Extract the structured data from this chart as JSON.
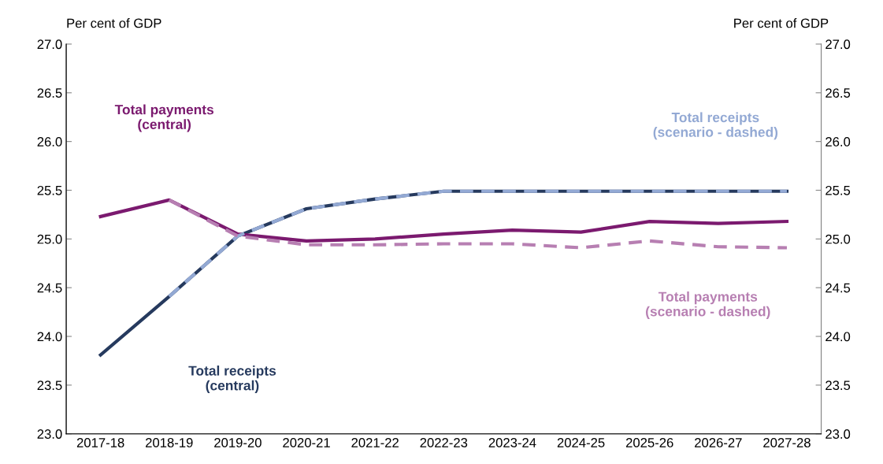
{
  "chart_data": {
    "type": "line",
    "ylabel": "Per cent of GDP",
    "y2label": "Per cent of GDP",
    "categories": [
      "2017-18",
      "2018-19",
      "2019-20",
      "2020-21",
      "2021-22",
      "2022-23",
      "2023-24",
      "2024-25",
      "2025-26",
      "2026-27",
      "2027-28"
    ],
    "ylim": [
      23.0,
      27.0
    ],
    "yticks": [
      {
        "value": 23.0,
        "label": "23.0"
      },
      {
        "value": 23.5,
        "label": "23.5"
      },
      {
        "value": 24.0,
        "label": "24.0"
      },
      {
        "value": 24.5,
        "label": "24.5"
      },
      {
        "value": 25.0,
        "label": "25.0"
      },
      {
        "value": 25.5,
        "label": "25.5"
      },
      {
        "value": 26.0,
        "label": "26.0"
      },
      {
        "value": 26.5,
        "label": "26.5"
      },
      {
        "value": 27.0,
        "label": "27.0"
      }
    ],
    "y2lim": [
      23.0,
      27.0
    ],
    "y2ticks": [
      {
        "value": 23.0,
        "label": "23.0"
      },
      {
        "value": 23.5,
        "label": "23.5"
      },
      {
        "value": 24.0,
        "label": "24.0"
      },
      {
        "value": 24.5,
        "label": "24.5"
      },
      {
        "value": 25.0,
        "label": "25.0"
      },
      {
        "value": 25.5,
        "label": "25.5"
      },
      {
        "value": 26.0,
        "label": "26.0"
      },
      {
        "value": 26.5,
        "label": "26.5"
      },
      {
        "value": 27.0,
        "label": "27.0"
      }
    ],
    "grid": false,
    "legend": false,
    "series": [
      {
        "name": "Total receipts\n(central)",
        "color": "#263a5e",
        "line_style": "solid",
        "values": [
          23.81,
          24.41,
          25.03,
          25.31,
          25.41,
          25.49,
          25.49,
          25.49,
          25.49,
          25.49,
          25.49
        ]
      },
      {
        "name": "Total payments\n(central)",
        "color": "#7b1a6f",
        "line_style": "solid",
        "values": [
          25.23,
          25.4,
          25.05,
          24.98,
          25.0,
          25.05,
          25.09,
          25.07,
          25.18,
          25.16,
          25.18
        ]
      },
      {
        "name": "Total receipts\n(scenario - dashed)",
        "color": "#93a9d4",
        "line_style": "dashed",
        "values": [
          null,
          24.41,
          25.03,
          25.31,
          25.41,
          25.49,
          25.49,
          25.49,
          25.49,
          25.49,
          25.49
        ]
      },
      {
        "name": "Total payments\n(scenario - dashed)",
        "color": "#b77fb2",
        "line_style": "dashed",
        "values": [
          null,
          25.4,
          25.03,
          24.94,
          24.94,
          24.95,
          24.95,
          24.91,
          24.98,
          24.92,
          24.91
        ]
      }
    ]
  }
}
